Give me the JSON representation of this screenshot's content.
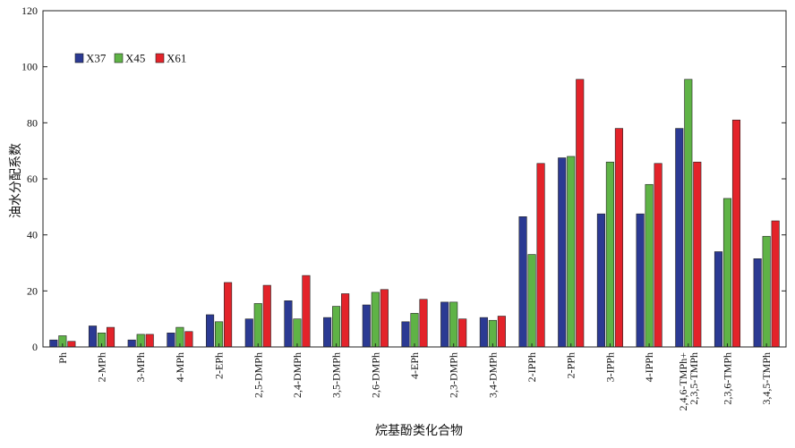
{
  "chart_data": {
    "type": "bar",
    "xlabel": "烷基酚类化合物",
    "ylabel": "油水分配系数",
    "ylim": [
      0,
      120
    ],
    "yticks": [
      0,
      20,
      40,
      60,
      80,
      100,
      120
    ],
    "grid": false,
    "legend_position": "top-left",
    "categories": [
      [
        "Ph"
      ],
      [
        "2-MPh"
      ],
      [
        "3-MPh"
      ],
      [
        "4-MPh"
      ],
      [
        "2-EPh"
      ],
      [
        "2,5-DMPh"
      ],
      [
        "2,4-DMPh"
      ],
      [
        "3,5-DMPh"
      ],
      [
        "2,6-DMPh"
      ],
      [
        "4-EPh"
      ],
      [
        "2,3-DMPh"
      ],
      [
        "3,4-DMPh"
      ],
      [
        "2-IPPh"
      ],
      [
        "2-PPh"
      ],
      [
        "3-IPPh"
      ],
      [
        "4-IPPh"
      ],
      [
        "2,4,6-TMPh+",
        "2,3,5-TMPh"
      ],
      [
        "2,3,6-TMPh"
      ],
      [
        "3,4,5-TMPh"
      ]
    ],
    "series": [
      {
        "name": "X37",
        "color": "#2b3a93",
        "values": [
          2.5,
          7.5,
          2.5,
          5,
          11.5,
          10,
          16.5,
          10.5,
          15,
          9,
          16,
          10.5,
          46.5,
          67.5,
          47.5,
          47.5,
          78,
          34,
          31.5
        ]
      },
      {
        "name": "X45",
        "color": "#5fb346",
        "values": [
          4,
          5,
          4.5,
          7,
          9,
          15.5,
          10,
          14.5,
          19.5,
          12,
          16,
          9.5,
          33,
          68,
          66,
          58,
          95.5,
          53,
          39.5
        ]
      },
      {
        "name": "X61",
        "color": "#e3232a",
        "values": [
          2,
          7,
          4.5,
          5.5,
          23,
          22,
          25.5,
          19,
          20.5,
          17,
          10,
          11,
          65.5,
          95.5,
          78,
          65.5,
          66,
          81,
          45
        ]
      }
    ]
  }
}
